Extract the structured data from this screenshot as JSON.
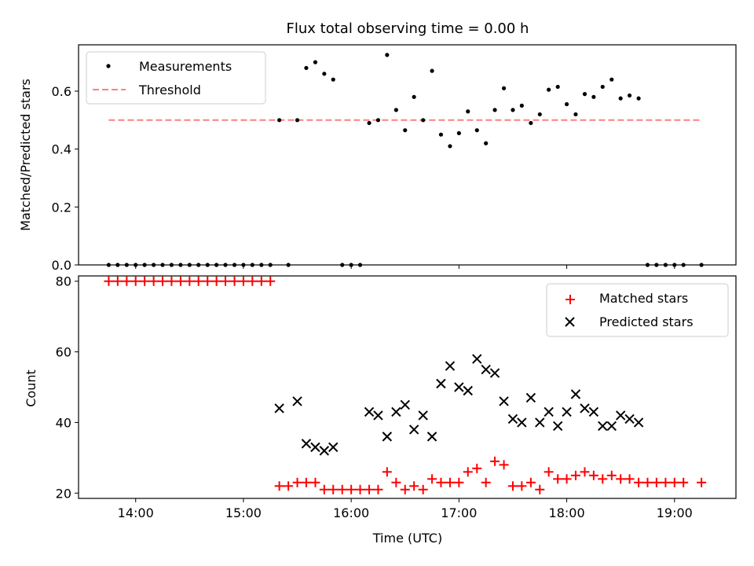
{
  "chart_data": [
    {
      "type": "scatter",
      "title": "Flux total observing time = 0.00 h",
      "xlabel": "",
      "ylabel": "Matched/Predicted stars",
      "xlim": [
        13.47,
        19.57
      ],
      "ylim": [
        0.0,
        0.76
      ],
      "yticks": [
        0.0,
        0.2,
        0.4,
        0.6
      ],
      "ytick_labels": [
        "0.0",
        "0.2",
        "0.4",
        "0.6"
      ],
      "xticks": [
        14,
        15,
        16,
        17,
        18,
        19
      ],
      "grid": false,
      "legend": {
        "location": "upper left"
      },
      "series": [
        {
          "name": "Measurements",
          "marker": "dot",
          "color": "#000000",
          "points": [
            [
              13.75,
              0.0
            ],
            [
              13.833,
              0.0
            ],
            [
              13.917,
              0.0
            ],
            [
              14.0,
              0.0
            ],
            [
              14.083,
              0.0
            ],
            [
              14.167,
              0.0
            ],
            [
              14.25,
              0.0
            ],
            [
              14.333,
              0.0
            ],
            [
              14.417,
              0.0
            ],
            [
              14.5,
              0.0
            ],
            [
              14.583,
              0.0
            ],
            [
              14.667,
              0.0
            ],
            [
              14.75,
              0.0
            ],
            [
              14.833,
              0.0
            ],
            [
              14.917,
              0.0
            ],
            [
              15.0,
              0.0
            ],
            [
              15.083,
              0.0
            ],
            [
              15.167,
              0.0
            ],
            [
              15.25,
              0.0
            ],
            [
              15.333,
              0.5
            ],
            [
              15.417,
              0.0
            ],
            [
              15.5,
              0.5
            ],
            [
              15.583,
              0.68
            ],
            [
              15.667,
              0.7
            ],
            [
              15.75,
              0.66
            ],
            [
              15.833,
              0.64
            ],
            [
              15.917,
              0.0
            ],
            [
              16.0,
              0.0
            ],
            [
              16.083,
              0.0
            ],
            [
              16.167,
              0.49
            ],
            [
              16.25,
              0.5
            ],
            [
              16.333,
              0.725
            ],
            [
              16.417,
              0.535
            ],
            [
              16.5,
              0.465
            ],
            [
              16.583,
              0.58
            ],
            [
              16.667,
              0.5
            ],
            [
              16.75,
              0.67
            ],
            [
              16.833,
              0.45
            ],
            [
              16.917,
              0.41
            ],
            [
              17.0,
              0.455
            ],
            [
              17.083,
              0.53
            ],
            [
              17.167,
              0.465
            ],
            [
              17.25,
              0.42
            ],
            [
              17.333,
              0.535
            ],
            [
              17.417,
              0.61
            ],
            [
              17.5,
              0.535
            ],
            [
              17.583,
              0.55
            ],
            [
              17.667,
              0.49
            ],
            [
              17.75,
              0.52
            ],
            [
              17.833,
              0.605
            ],
            [
              17.917,
              0.615
            ],
            [
              18.0,
              0.555
            ],
            [
              18.083,
              0.52
            ],
            [
              18.167,
              0.59
            ],
            [
              18.25,
              0.58
            ],
            [
              18.333,
              0.615
            ],
            [
              18.417,
              0.64
            ],
            [
              18.5,
              0.575
            ],
            [
              18.583,
              0.585
            ],
            [
              18.667,
              0.575
            ],
            [
              18.75,
              0.0
            ],
            [
              18.833,
              0.0
            ],
            [
              18.917,
              0.0
            ],
            [
              19.0,
              0.0
            ],
            [
              19.083,
              0.0
            ],
            [
              19.25,
              0.0
            ]
          ]
        },
        {
          "name": "Threshold",
          "type": "line",
          "style": "dashed",
          "color": "#ff7f7f",
          "points": [
            [
              13.75,
              0.5
            ],
            [
              19.25,
              0.5
            ]
          ]
        }
      ]
    },
    {
      "type": "scatter",
      "title": "",
      "xlabel": "Time (UTC)",
      "ylabel": "Count",
      "xlim": [
        13.47,
        19.57
      ],
      "ylim": [
        18.5,
        81.5
      ],
      "yticks": [
        20,
        40,
        60,
        80
      ],
      "ytick_labels": [
        "20",
        "40",
        "60",
        "80"
      ],
      "xticks": [
        14,
        15,
        16,
        17,
        18,
        19
      ],
      "xtick_labels": [
        "14:00",
        "15:00",
        "16:00",
        "17:00",
        "18:00",
        "19:00"
      ],
      "grid": false,
      "legend": {
        "location": "upper right"
      },
      "series": [
        {
          "name": "Matched stars",
          "marker": "plus",
          "color": "#ff0000",
          "points": [
            [
              13.75,
              80
            ],
            [
              13.833,
              80
            ],
            [
              13.917,
              80
            ],
            [
              14.0,
              80
            ],
            [
              14.083,
              80
            ],
            [
              14.167,
              80
            ],
            [
              14.25,
              80
            ],
            [
              14.333,
              80
            ],
            [
              14.417,
              80
            ],
            [
              14.5,
              80
            ],
            [
              14.583,
              80
            ],
            [
              14.667,
              80
            ],
            [
              14.75,
              80
            ],
            [
              14.833,
              80
            ],
            [
              14.917,
              80
            ],
            [
              15.0,
              80
            ],
            [
              15.083,
              80
            ],
            [
              15.167,
              80
            ],
            [
              15.25,
              80
            ],
            [
              15.333,
              22
            ],
            [
              15.417,
              22
            ],
            [
              15.5,
              23
            ],
            [
              15.583,
              23
            ],
            [
              15.667,
              23
            ],
            [
              15.75,
              21
            ],
            [
              15.833,
              21
            ],
            [
              15.917,
              21
            ],
            [
              16.0,
              21
            ],
            [
              16.083,
              21
            ],
            [
              16.167,
              21
            ],
            [
              16.25,
              21
            ],
            [
              16.333,
              26
            ],
            [
              16.417,
              23
            ],
            [
              16.5,
              21
            ],
            [
              16.583,
              22
            ],
            [
              16.667,
              21
            ],
            [
              16.75,
              24
            ],
            [
              16.833,
              23
            ],
            [
              16.917,
              23
            ],
            [
              17.0,
              23
            ],
            [
              17.083,
              26
            ],
            [
              17.167,
              27
            ],
            [
              17.25,
              23
            ],
            [
              17.333,
              29
            ],
            [
              17.417,
              28
            ],
            [
              17.5,
              22
            ],
            [
              17.583,
              22
            ],
            [
              17.667,
              23
            ],
            [
              17.75,
              21
            ],
            [
              17.833,
              26
            ],
            [
              17.917,
              24
            ],
            [
              18.0,
              24
            ],
            [
              18.083,
              25
            ],
            [
              18.167,
              26
            ],
            [
              18.25,
              25
            ],
            [
              18.333,
              24
            ],
            [
              18.417,
              25
            ],
            [
              18.5,
              24
            ],
            [
              18.583,
              24
            ],
            [
              18.667,
              23
            ],
            [
              18.75,
              23
            ],
            [
              18.833,
              23
            ],
            [
              18.917,
              23
            ],
            [
              19.0,
              23
            ],
            [
              19.083,
              23
            ],
            [
              19.25,
              23
            ]
          ]
        },
        {
          "name": "Predicted stars",
          "marker": "x",
          "color": "#000000",
          "points": [
            [
              15.333,
              44
            ],
            [
              15.5,
              46
            ],
            [
              15.583,
              34
            ],
            [
              15.667,
              33
            ],
            [
              15.75,
              32
            ],
            [
              15.833,
              33
            ],
            [
              16.167,
              43
            ],
            [
              16.25,
              42
            ],
            [
              16.333,
              36
            ],
            [
              16.417,
              43
            ],
            [
              16.5,
              45
            ],
            [
              16.583,
              38
            ],
            [
              16.667,
              42
            ],
            [
              16.75,
              36
            ],
            [
              16.833,
              51
            ],
            [
              16.917,
              56
            ],
            [
              17.0,
              50
            ],
            [
              17.083,
              49
            ],
            [
              17.167,
              58
            ],
            [
              17.25,
              55
            ],
            [
              17.333,
              54
            ],
            [
              17.417,
              46
            ],
            [
              17.5,
              41
            ],
            [
              17.583,
              40
            ],
            [
              17.667,
              47
            ],
            [
              17.75,
              40
            ],
            [
              17.833,
              43
            ],
            [
              17.917,
              39
            ],
            [
              18.0,
              43
            ],
            [
              18.083,
              48
            ],
            [
              18.167,
              44
            ],
            [
              18.25,
              43
            ],
            [
              18.333,
              39
            ],
            [
              18.417,
              39
            ],
            [
              18.5,
              42
            ],
            [
              18.583,
              41
            ],
            [
              18.667,
              40
            ]
          ]
        }
      ]
    }
  ]
}
